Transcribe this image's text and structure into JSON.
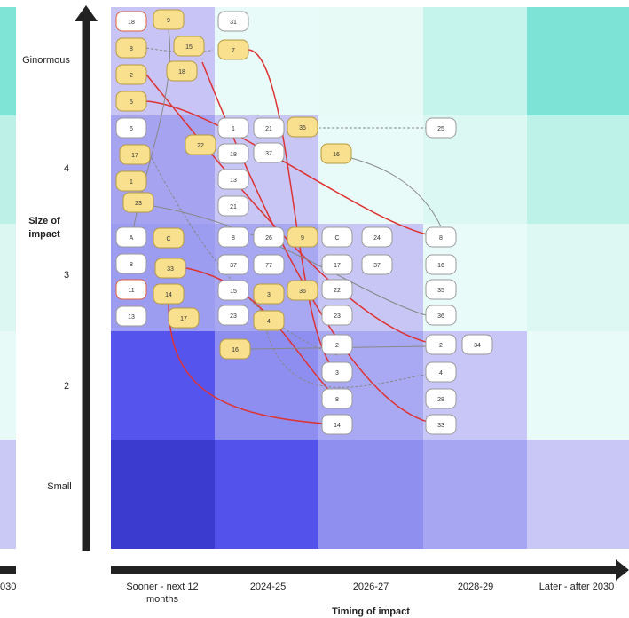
{
  "left_panel": {
    "label": "030"
  },
  "y_axis": {
    "title": "Size of impact",
    "labels": [
      "Ginormous",
      "4",
      "3",
      "2",
      "Small"
    ]
  },
  "x_axis": {
    "title": "Timing of impact",
    "labels": [
      "Sooner - next 12 months",
      "2024-25",
      "2026-27",
      "2028-29",
      "Later - after 2030"
    ]
  },
  "nodes": [
    {
      "label": "18",
      "style": "outlined"
    },
    {
      "label": "9",
      "style": "yellow"
    },
    {
      "label": "8",
      "style": "yellow"
    },
    {
      "label": "15",
      "style": "yellow"
    },
    {
      "label": "2",
      "style": "yellow"
    },
    {
      "label": "18",
      "style": "yellow"
    },
    {
      "label": "5",
      "style": "yellow"
    },
    {
      "label": "6",
      "style": "white"
    },
    {
      "label": "17",
      "style": "yellow"
    },
    {
      "label": "22",
      "style": "yellow"
    },
    {
      "label": "1",
      "style": "yellow"
    },
    {
      "label": "23",
      "style": "yellow"
    },
    {
      "label": "A",
      "style": "white"
    },
    {
      "label": "C",
      "style": "yellow"
    },
    {
      "label": "8",
      "style": "white"
    },
    {
      "label": "33",
      "style": "yellow"
    },
    {
      "label": "11",
      "style": "outlined"
    },
    {
      "label": "14",
      "style": "yellow"
    },
    {
      "label": "13",
      "style": "white"
    },
    {
      "label": "17",
      "style": "yellow"
    },
    {
      "label": "31",
      "style": "white"
    },
    {
      "label": "7",
      "style": "yellow"
    },
    {
      "label": "1",
      "style": "white"
    },
    {
      "label": "21",
      "style": "white"
    },
    {
      "label": "35",
      "style": "yellow"
    },
    {
      "label": "18",
      "style": "white"
    },
    {
      "label": "37",
      "style": "white"
    },
    {
      "label": "13",
      "style": "white"
    },
    {
      "label": "21",
      "style": "white"
    },
    {
      "label": "8",
      "style": "white"
    },
    {
      "label": "26",
      "style": "white"
    },
    {
      "label": "9",
      "style": "yellow"
    },
    {
      "label": "37",
      "style": "white"
    },
    {
      "label": "77",
      "style": "white"
    },
    {
      "label": "15",
      "style": "white"
    },
    {
      "label": "3",
      "style": "yellow"
    },
    {
      "label": "36",
      "style": "yellow"
    },
    {
      "label": "23",
      "style": "white"
    },
    {
      "label": "4",
      "style": "yellow"
    },
    {
      "label": "16",
      "style": "yellow"
    },
    {
      "label": "16",
      "style": "yellow"
    },
    {
      "label": "C",
      "style": "white"
    },
    {
      "label": "24",
      "style": "white"
    },
    {
      "label": "17",
      "style": "white"
    },
    {
      "label": "37",
      "style": "white"
    },
    {
      "label": "22",
      "style": "white"
    },
    {
      "label": "23",
      "style": "white"
    },
    {
      "label": "2",
      "style": "white"
    },
    {
      "label": "3",
      "style": "white"
    },
    {
      "label": "8",
      "style": "white"
    },
    {
      "label": "14",
      "style": "white"
    },
    {
      "label": "25",
      "style": "white"
    },
    {
      "label": "8",
      "style": "white"
    },
    {
      "label": "16",
      "style": "white"
    },
    {
      "label": "35",
      "style": "white"
    },
    {
      "label": "36",
      "style": "white"
    },
    {
      "label": "2",
      "style": "white"
    },
    {
      "label": "34",
      "style": "white"
    },
    {
      "label": "4",
      "style": "white"
    },
    {
      "label": "28",
      "style": "white"
    },
    {
      "label": "33",
      "style": "white"
    }
  ]
}
